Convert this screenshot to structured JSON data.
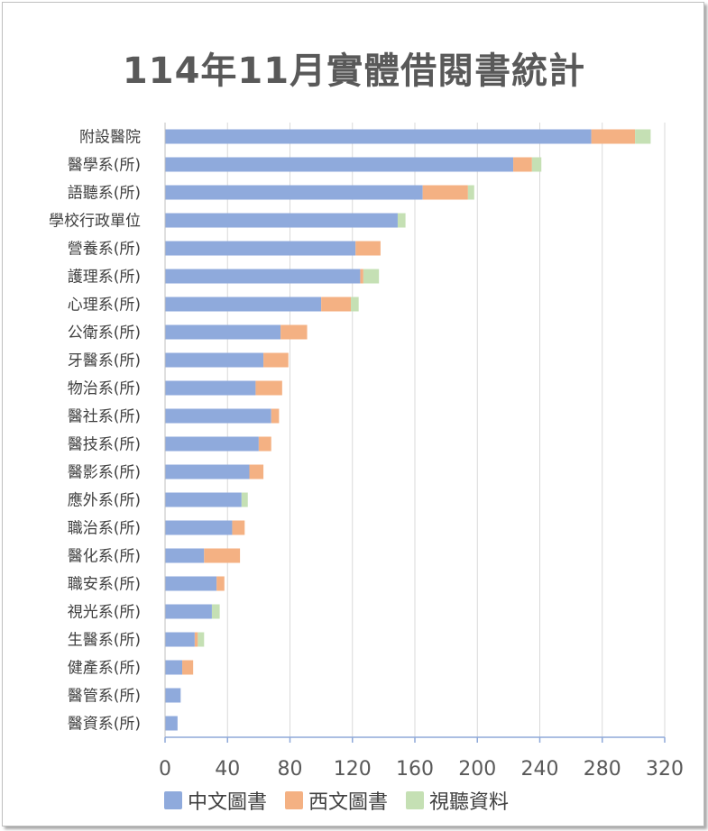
{
  "chart_data": {
    "type": "bar",
    "orientation": "horizontal",
    "stacked": true,
    "title": "114年11月實體借閱書統計",
    "categories": [
      "附設醫院",
      "醫學系(所)",
      "語聽系(所)",
      "學校行政單位",
      "營養系(所)",
      "護理系(所)",
      "心理系(所)",
      "公衛系(所)",
      "牙醫系(所)",
      "物治系(所)",
      "醫社系(所)",
      "醫技系(所)",
      "醫影系(所)",
      "應外系(所)",
      "職治系(所)",
      "醫化系(所)",
      "職安系(所)",
      "視光系(所)",
      "生醫系(所)",
      "健產系(所)",
      "醫管系(所)",
      "醫資系(所)"
    ],
    "series": [
      {
        "name": "中文圖書",
        "color": "#8FAADC",
        "values": [
          273,
          223,
          165,
          149,
          122,
          125,
          100,
          74,
          63,
          58,
          68,
          60,
          54,
          49,
          43,
          25,
          33,
          30,
          19,
          11,
          10,
          8
        ]
      },
      {
        "name": "西文圖書",
        "color": "#F4B183",
        "values": [
          28,
          12,
          29,
          0,
          16,
          2,
          19,
          17,
          16,
          17,
          5,
          8,
          9,
          0,
          8,
          23,
          5,
          0,
          2,
          7,
          0,
          0
        ]
      },
      {
        "name": "視聽資料",
        "color": "#C5E0B4",
        "values": [
          10,
          6,
          4,
          5,
          0,
          10,
          5,
          0,
          0,
          0,
          0,
          0,
          0,
          4,
          0,
          0,
          0,
          5,
          4,
          0,
          0,
          0
        ]
      }
    ],
    "xlim": [
      0,
      320
    ],
    "xticks": [
      0,
      40,
      80,
      120,
      160,
      200,
      240,
      280,
      320
    ],
    "grid": true,
    "legend_position": "bottom",
    "xlabel": "",
    "ylabel": ""
  }
}
